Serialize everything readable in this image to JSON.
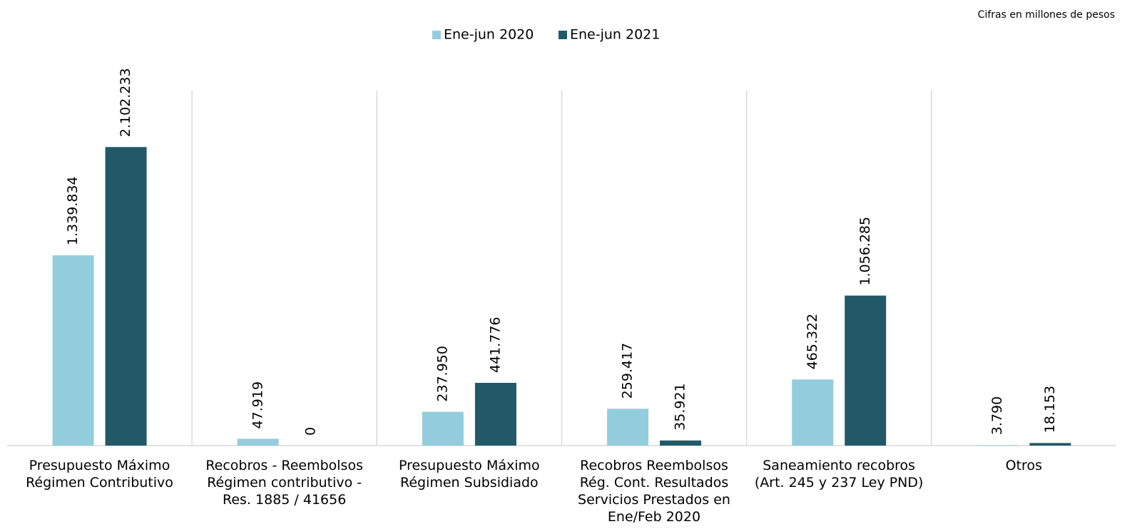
{
  "chart_data": {
    "type": "bar",
    "note": "Cifras en millones de pesos",
    "categories": [
      "Presupuesto Máximo\nRégimen Contributivo",
      "Recobros - Reembolsos\nRégimen contributivo -\nRes. 1885 / 41656",
      "Presupuesto Máximo\nRégimen Subsidiado",
      "Recobros Reembolsos\nRég. Cont. Resultados\nServicios Prestados en\nEne/Feb 2020",
      "Saneamiento recobros\n(Art. 245 y 237 Ley PND)",
      "Otros"
    ],
    "series": [
      {
        "name": "Ene-jun 2020",
        "color": "#93cddd",
        "values": [
          1339834,
          47919,
          237950,
          259417,
          465322,
          3790
        ],
        "value_labels": [
          "1.339.834",
          "47.919",
          "237.950",
          "259.417",
          "465.322",
          "3.790"
        ]
      },
      {
        "name": "Ene-jun 2021",
        "color": "#215968",
        "values": [
          2102233,
          0,
          441776,
          35921,
          1056285,
          18153
        ],
        "value_labels": [
          "2.102.233",
          "0",
          "441.776",
          "35.921",
          "1.056.285",
          "18.153"
        ]
      }
    ],
    "ylim": [
      0,
      2500000
    ]
  }
}
